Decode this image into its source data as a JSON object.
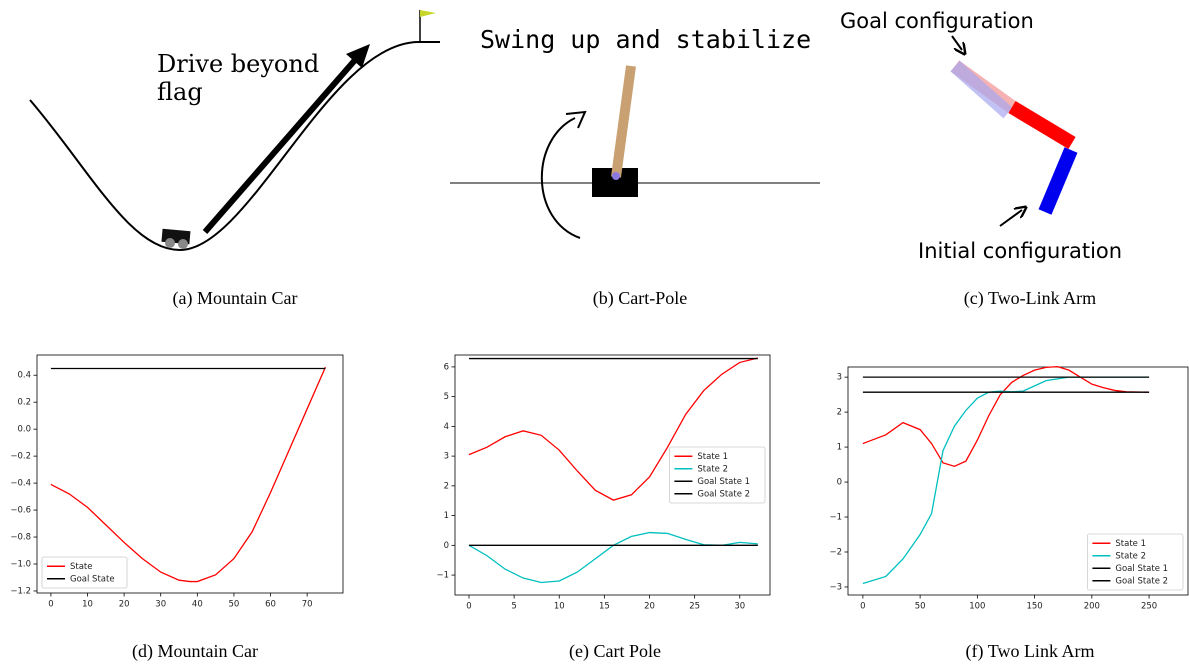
{
  "illustrations": [
    {
      "caption": "(a) Mountain Car",
      "labels": [
        "Drive beyond",
        "flag"
      ]
    },
    {
      "caption": "(b) Cart-Pole",
      "labels": [
        "Swing up and stabilize"
      ]
    },
    {
      "caption": "(c) Two-Link Arm",
      "labels": [
        "Goal configuration",
        "Initial configuration"
      ]
    }
  ],
  "chart_data": [
    {
      "type": "line",
      "caption": "(d) Mountain Car",
      "x": [
        0,
        5,
        10,
        15,
        20,
        25,
        30,
        35,
        38,
        40,
        45,
        50,
        55,
        60,
        65,
        70,
        75
      ],
      "series": [
        {
          "name": "State",
          "color": "#ff0000",
          "values": [
            -0.41,
            -0.48,
            -0.58,
            -0.71,
            -0.84,
            -0.96,
            -1.06,
            -1.12,
            -1.13,
            -1.13,
            -1.08,
            -0.96,
            -0.76,
            -0.47,
            -0.16,
            0.15,
            0.46
          ]
        },
        {
          "name": "Goal State",
          "color": "#000000",
          "values": [
            0.45,
            0.45,
            0.45,
            0.45,
            0.45,
            0.45,
            0.45,
            0.45,
            0.45,
            0.45,
            0.45,
            0.45,
            0.45,
            0.45,
            0.45,
            0.45,
            0.45
          ]
        }
      ],
      "xlim": [
        -3.8,
        79.8
      ],
      "ylim": [
        -1.215,
        0.55
      ],
      "xticks": [
        0,
        10,
        20,
        30,
        40,
        50,
        60,
        70
      ],
      "yticks": [
        0.4,
        0.2,
        {
          "value": 0,
          "label": "0.0"
        },
        {
          "value": -0.2,
          "label": "−0.2"
        },
        {
          "value": -0.4,
          "label": "−0.4"
        },
        {
          "value": -0.6,
          "label": "−0.6"
        },
        {
          "value": -0.8,
          "label": "−0.8"
        },
        {
          "value": -1.0,
          "label": "−1.0"
        },
        {
          "value": -1.2,
          "label": "−1.2"
        }
      ],
      "legend": "lower left"
    },
    {
      "type": "line",
      "caption": "(e) Cart Pole",
      "x": [
        0,
        2,
        4,
        6,
        8,
        10,
        12,
        14,
        16,
        18,
        20,
        22,
        24,
        26,
        28,
        30,
        32
      ],
      "series": [
        {
          "name": "State 1",
          "color": "#ff0000",
          "values": [
            3.05,
            3.3,
            3.65,
            3.85,
            3.7,
            3.2,
            2.5,
            1.85,
            1.52,
            1.7,
            2.3,
            3.3,
            4.4,
            5.2,
            5.75,
            6.15,
            6.3
          ]
        },
        {
          "name": "State 2",
          "color": "#00bfbf",
          "values": [
            0,
            -0.35,
            -0.8,
            -1.1,
            -1.25,
            -1.2,
            -0.9,
            -0.45,
            0,
            0.3,
            0.43,
            0.4,
            0.2,
            0.02,
            0,
            0.1,
            0.05
          ]
        },
        {
          "name": "Goal State 1",
          "color": "#000000",
          "values": [
            6.28,
            6.28,
            6.28,
            6.28,
            6.28,
            6.28,
            6.28,
            6.28,
            6.28,
            6.28,
            6.28,
            6.28,
            6.28,
            6.28,
            6.28,
            6.28,
            6.28
          ]
        },
        {
          "name": "Goal State 2",
          "color": "#000000",
          "values": [
            0,
            0,
            0,
            0,
            0,
            0,
            0,
            0,
            0,
            0,
            0,
            0,
            0,
            0,
            0,
            0,
            0
          ]
        }
      ],
      "xlim": [
        -1.55,
        33.35
      ],
      "ylim": [
        -1.67,
        6.4
      ],
      "xticks": [
        0,
        5,
        10,
        15,
        20,
        25,
        30
      ],
      "yticks": [
        6,
        5,
        4,
        3,
        2,
        1,
        0,
        {
          "value": -1,
          "label": "−1"
        }
      ],
      "legend": "center right"
    },
    {
      "type": "line",
      "caption": "(f) Two Link Arm",
      "x": [
        0,
        20,
        35,
        50,
        60,
        70,
        80,
        90,
        100,
        110,
        120,
        130,
        140,
        150,
        160,
        170,
        180,
        190,
        200,
        210,
        220,
        230,
        250
      ],
      "series": [
        {
          "name": "State 1",
          "color": "#ff0000",
          "values": [
            1.1,
            1.35,
            1.7,
            1.5,
            1.1,
            0.55,
            0.45,
            0.6,
            1.2,
            1.9,
            2.5,
            2.85,
            3.05,
            3.2,
            3.28,
            3.3,
            3.2,
            3.0,
            2.8,
            2.7,
            2.62,
            2.58,
            2.57
          ]
        },
        {
          "name": "State 2",
          "color": "#00bfbf",
          "values": [
            -2.9,
            -2.7,
            -2.2,
            -1.5,
            -0.9,
            0.9,
            1.6,
            2.05,
            2.4,
            2.57,
            2.6,
            2.58,
            2.6,
            2.75,
            2.9,
            2.95,
            3.0,
            3.0,
            3.0,
            3.0,
            3.0,
            3.0,
            3.0
          ]
        },
        {
          "name": "Goal State 1",
          "color": "#000000",
          "values": [
            3.0,
            3.0,
            3.0,
            3.0,
            3.0,
            3.0,
            3.0,
            3.0,
            3.0,
            3.0,
            3.0,
            3.0,
            3.0,
            3.0,
            3.0,
            3.0,
            3.0,
            3.0,
            3.0,
            3.0,
            3.0,
            3.0,
            3.0
          ]
        },
        {
          "name": "Goal State 2",
          "color": "#000000",
          "values": [
            2.57,
            2.57,
            2.57,
            2.57,
            2.57,
            2.57,
            2.57,
            2.57,
            2.57,
            2.57,
            2.57,
            2.57,
            2.57,
            2.57,
            2.57,
            2.57,
            2.57,
            2.57,
            2.57,
            2.57,
            2.57,
            2.57,
            2.57
          ]
        }
      ],
      "xlim": [
        -13,
        284
      ],
      "ylim": [
        -3.23,
        3.29
      ],
      "xticks": [
        0,
        50,
        100,
        150,
        200,
        250
      ],
      "yticks": [
        3,
        2,
        1,
        0,
        {
          "value": -1,
          "label": "−1"
        },
        {
          "value": -2,
          "label": "−2"
        },
        {
          "value": -3,
          "label": "−3"
        }
      ],
      "legend": "lower right"
    }
  ]
}
